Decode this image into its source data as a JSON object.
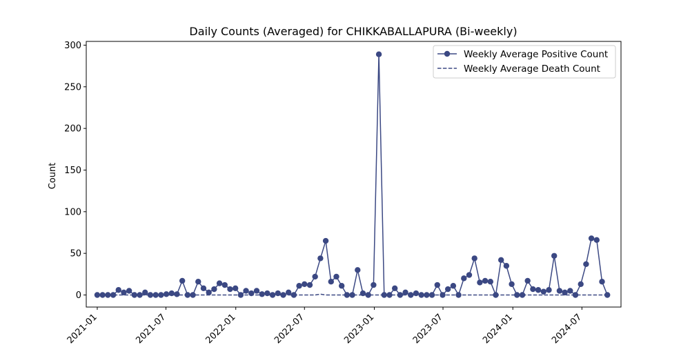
{
  "chart_data": {
    "type": "line",
    "title": "Daily Counts (Averaged) for CHIKKABALLAPURA (Bi-weekly)",
    "xlabel": "",
    "ylabel": "Count",
    "ylim": [
      -14.5,
      304.5
    ],
    "xlim": [
      "2020-12-03",
      "2024-10-12"
    ],
    "yticks": [
      0,
      50,
      100,
      150,
      200,
      250,
      300
    ],
    "xticks": [
      {
        "date": "2021-01-01",
        "label": "2021-01"
      },
      {
        "date": "2021-07-01",
        "label": "2021-07"
      },
      {
        "date": "2022-01-01",
        "label": "2022-01"
      },
      {
        "date": "2022-07-01",
        "label": "2022-07"
      },
      {
        "date": "2023-01-01",
        "label": "2023-01"
      },
      {
        "date": "2023-07-01",
        "label": "2023-07"
      },
      {
        "date": "2024-01-01",
        "label": "2024-01"
      },
      {
        "date": "2024-07-01",
        "label": "2024-07"
      }
    ],
    "grid": false,
    "legend_position": "top-right",
    "color": "#3b4883",
    "x": [
      "2021-01-01",
      "2021-01-15",
      "2021-01-29",
      "2021-02-12",
      "2021-02-26",
      "2021-03-12",
      "2021-03-26",
      "2021-04-09",
      "2021-04-23",
      "2021-05-07",
      "2021-05-21",
      "2021-06-04",
      "2021-06-18",
      "2021-07-02",
      "2021-07-16",
      "2021-07-30",
      "2021-08-13",
      "2021-08-27",
      "2021-09-10",
      "2021-09-24",
      "2021-10-08",
      "2021-10-22",
      "2021-11-05",
      "2021-11-19",
      "2021-12-03",
      "2021-12-17",
      "2021-12-31",
      "2022-01-14",
      "2022-01-28",
      "2022-02-11",
      "2022-02-25",
      "2022-03-11",
      "2022-03-25",
      "2022-04-08",
      "2022-04-22",
      "2022-05-06",
      "2022-05-20",
      "2022-06-03",
      "2022-06-17",
      "2022-07-01",
      "2022-07-15",
      "2022-07-29",
      "2022-08-12",
      "2022-08-26",
      "2022-09-09",
      "2022-09-23",
      "2022-10-07",
      "2022-10-21",
      "2022-11-04",
      "2022-11-18",
      "2022-12-02",
      "2022-12-16",
      "2022-12-30",
      "2023-01-13",
      "2023-01-27",
      "2023-02-10",
      "2023-02-24",
      "2023-03-10",
      "2023-03-24",
      "2023-04-07",
      "2023-04-21",
      "2023-05-05",
      "2023-05-19",
      "2023-06-02",
      "2023-06-16",
      "2023-06-30",
      "2023-07-14",
      "2023-07-28",
      "2023-08-11",
      "2023-08-25",
      "2023-09-08",
      "2023-09-22",
      "2023-10-06",
      "2023-10-20",
      "2023-11-03",
      "2023-11-17",
      "2023-12-01",
      "2023-12-15",
      "2023-12-29",
      "2024-01-12",
      "2024-01-26",
      "2024-02-09",
      "2024-02-23",
      "2024-03-08",
      "2024-03-22",
      "2024-04-05",
      "2024-04-19",
      "2024-05-03",
      "2024-05-17",
      "2024-05-31",
      "2024-06-14",
      "2024-06-28",
      "2024-07-12",
      "2024-07-26",
      "2024-08-09",
      "2024-08-23",
      "2024-09-06"
    ],
    "series": [
      {
        "name": "Weekly Average Positive Count",
        "style": "solid-with-markers",
        "values": [
          0,
          0,
          0,
          0,
          6,
          3,
          5,
          0,
          0,
          3,
          0,
          0,
          0,
          1,
          2,
          1,
          17,
          0,
          0,
          16,
          8,
          3,
          7,
          14,
          12,
          7,
          8,
          0,
          5,
          2,
          5,
          1,
          2,
          0,
          2,
          0,
          3,
          0,
          11,
          13,
          12,
          22,
          44,
          65,
          16,
          22,
          11,
          0,
          0,
          30,
          2,
          0,
          12,
          289,
          0,
          0,
          8,
          0,
          3,
          0,
          2,
          0,
          0,
          0,
          12,
          0,
          7,
          11,
          0,
          20,
          24,
          44,
          15,
          17,
          16,
          0,
          42,
          35,
          13,
          0,
          0,
          17,
          7,
          6,
          4,
          6,
          47,
          5,
          3,
          5,
          0,
          13,
          37,
          68,
          66,
          16,
          0
        ]
      },
      {
        "name": "Weekly Average Death Count",
        "style": "dashed",
        "values": [
          0,
          0,
          0,
          0,
          0,
          0,
          0,
          0,
          0,
          0,
          0,
          0,
          0,
          0,
          0,
          0,
          0,
          0,
          0,
          0,
          0,
          0,
          0,
          0,
          0,
          0,
          0,
          0,
          0,
          0,
          0,
          0,
          0,
          0,
          0,
          0,
          0,
          0,
          0,
          0,
          0,
          0,
          1,
          0,
          0,
          0,
          0,
          0,
          0,
          0,
          0,
          0,
          0,
          0,
          0,
          0,
          0,
          0,
          0,
          0,
          0,
          0,
          0,
          0,
          0,
          0,
          0,
          0,
          0,
          0,
          0,
          0,
          0,
          0,
          0,
          0,
          0,
          0,
          0,
          0,
          0,
          0,
          0,
          0,
          0,
          0,
          0,
          0,
          0,
          0,
          0,
          0,
          0,
          0,
          0,
          0,
          0
        ]
      }
    ]
  }
}
